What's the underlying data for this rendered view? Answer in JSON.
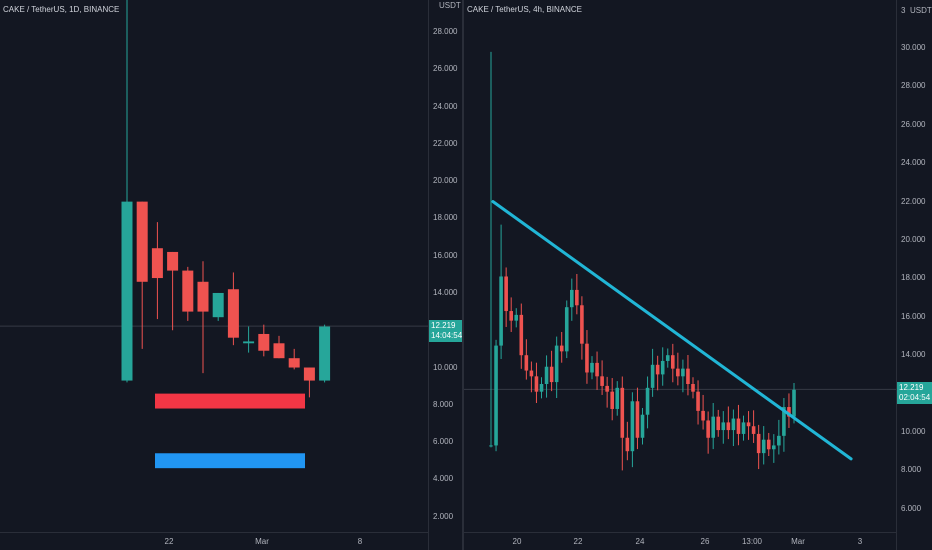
{
  "left": {
    "title": "CAKE / TetherUS, 1D, BINANCE",
    "unit": "USDT",
    "y_ticks": [
      "28.000",
      "26.000",
      "24.000",
      "22.000",
      "20.000",
      "18.000",
      "16.000",
      "14.000",
      "12.000",
      "10.000",
      "8.000",
      "6.000",
      "4.000",
      "2.000"
    ],
    "x_ticks": [
      "22",
      "Mar",
      "8"
    ],
    "price_tag": {
      "value": "12.219",
      "time": "14:04:54"
    }
  },
  "right": {
    "title": "CAKE / TetherUS, 4h, BINANCE",
    "unit": "USDT",
    "scale_marker": "3",
    "y_ticks": [
      "30.000",
      "28.000",
      "26.000",
      "24.000",
      "22.000",
      "20.000",
      "18.000",
      "16.000",
      "14.000",
      "12.000",
      "10.000",
      "8.000",
      "6.000"
    ],
    "x_ticks": [
      "20",
      "22",
      "24",
      "26",
      "13:00",
      "Mar",
      "3"
    ],
    "price_tag": {
      "value": "12.219",
      "time": "02:04:54"
    }
  },
  "colors": {
    "up": "#26a69a",
    "down": "#ef5350",
    "trendline": "#21b6d6",
    "support": "#f23645",
    "target": "#2196f3",
    "background": "#131722"
  },
  "chart_data": [
    {
      "type": "candlestick",
      "title": "CAKE / TetherUS, 1D, BINANCE",
      "ylabel": "USDT",
      "ylim": [
        1,
        29
      ],
      "x_ticks": [
        "22",
        "Mar",
        "8"
      ],
      "current_price": 12.219,
      "candles": [
        {
          "o": 9.3,
          "h": 30.0,
          "l": 9.2,
          "c": 18.9
        },
        {
          "o": 18.9,
          "h": 18.9,
          "l": 11.0,
          "c": 14.6
        },
        {
          "o": 16.4,
          "h": 17.8,
          "l": 12.6,
          "c": 14.8
        },
        {
          "o": 16.2,
          "h": 16.2,
          "l": 12.0,
          "c": 15.2
        },
        {
          "o": 15.2,
          "h": 15.4,
          "l": 12.5,
          "c": 13.0
        },
        {
          "o": 14.6,
          "h": 15.7,
          "l": 9.7,
          "c": 13.0
        },
        {
          "o": 12.7,
          "h": 14.0,
          "l": 12.5,
          "c": 14.0
        },
        {
          "o": 14.2,
          "h": 15.1,
          "l": 11.2,
          "c": 11.6
        },
        {
          "o": 11.3,
          "h": 12.2,
          "l": 10.8,
          "c": 11.4
        },
        {
          "o": 11.8,
          "h": 12.3,
          "l": 10.6,
          "c": 10.9
        },
        {
          "o": 11.3,
          "h": 11.7,
          "l": 10.5,
          "c": 10.5
        },
        {
          "o": 10.5,
          "h": 11.0,
          "l": 9.9,
          "c": 10.0
        },
        {
          "o": 10.0,
          "h": 10.0,
          "l": 8.4,
          "c": 9.3
        },
        {
          "o": 9.3,
          "h": 12.3,
          "l": 9.2,
          "c": 12.2
        }
      ],
      "zones": [
        {
          "name": "support",
          "from": 7.8,
          "to": 8.6
        },
        {
          "name": "target",
          "from": 4.6,
          "to": 5.4
        }
      ]
    },
    {
      "type": "candlestick",
      "title": "CAKE / TetherUS, 4h, BINANCE",
      "ylabel": "USDT",
      "ylim": [
        5,
        31
      ],
      "x_ticks": [
        "20",
        "22",
        "24",
        "26",
        "13:00",
        "Mar",
        "3"
      ],
      "current_price": 12.219,
      "trendline": [
        [
          18.8,
          22.0
        ],
        [
          28.4,
          8.6
        ]
      ],
      "closes": [
        9.3,
        14.5,
        18.1,
        16.3,
        15.8,
        16.1,
        14.0,
        13.2,
        12.9,
        12.1,
        12.5,
        13.4,
        12.6,
        14.5,
        14.2,
        16.5,
        17.4,
        16.6,
        14.6,
        13.1,
        13.6,
        12.9,
        12.4,
        12.1,
        11.2,
        12.3,
        9.7,
        9.0,
        11.6,
        9.7,
        10.9,
        12.3,
        13.5,
        13.0,
        13.7,
        14.0,
        13.3,
        12.9,
        13.3,
        12.5,
        12.1,
        11.1,
        10.6,
        9.7,
        10.8,
        10.1,
        10.5,
        10.1,
        10.7,
        9.9,
        10.5,
        10.3,
        9.9,
        8.9,
        9.6,
        9.1,
        9.3,
        9.8,
        11.3,
        10.8,
        12.2
      ]
    }
  ]
}
